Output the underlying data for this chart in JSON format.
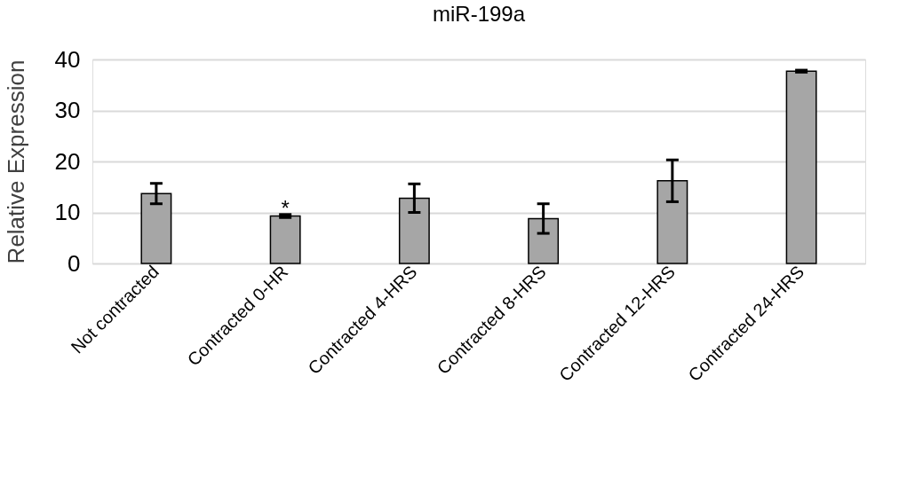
{
  "chart_data": {
    "type": "bar",
    "title": "miR-199a",
    "ylabel": "Relative Expression",
    "categories": [
      "Not contracted",
      "Contracted 0-HR",
      "Contracted 4-HRS",
      "Contracted 8-HRS",
      "Contracted 12-HRS",
      "Contracted 24-HRS"
    ],
    "values": [
      13.7,
      9.3,
      12.8,
      8.8,
      16.2,
      37.7
    ],
    "errors": [
      2.0,
      0.3,
      2.8,
      2.9,
      4.1,
      0.2
    ],
    "color": "#a6a6a6",
    "ylim": [
      0,
      40
    ],
    "yticks": [
      0,
      10,
      20,
      30,
      40
    ],
    "grid": "y",
    "annotations": [
      {
        "text": "*",
        "x": "Contracted 0-HR",
        "y": 9.6
      }
    ]
  }
}
